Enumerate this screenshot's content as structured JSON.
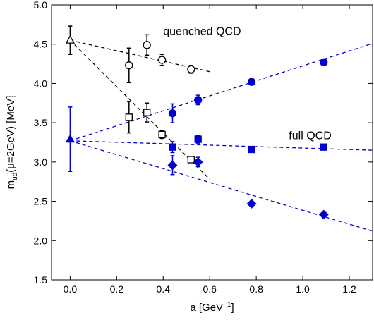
{
  "chart_data": {
    "type": "scatter",
    "xlabel": "a [GeV",
    "xlabel_sup": "−1",
    "xlabel_end": "]",
    "ylabel_main": "m",
    "ylabel_sub": "ud",
    "ylabel_rest": "(μ=2GeV) [MeV]",
    "xlim": [
      -0.08,
      1.3
    ],
    "ylim": [
      1.5,
      5.0
    ],
    "xticks": [
      0.0,
      0.2,
      0.4,
      0.6,
      0.8,
      1.0,
      1.2
    ],
    "yticks": [
      1.5,
      2.0,
      2.5,
      3.0,
      3.5,
      4.0,
      4.5,
      5.0
    ],
    "xtick_labels": [
      "0.0",
      "0.2",
      "0.4",
      "0.6",
      "0.8",
      "1.0",
      "1.2"
    ],
    "ytick_labels": [
      "1.5",
      "2.0",
      "2.5",
      "3.0",
      "3.5",
      "4.0",
      "4.5",
      "5.0"
    ],
    "grid": false,
    "annotations": [
      {
        "text": "quenched QCD",
        "x": 0.4,
        "y": 4.62
      },
      {
        "text": "full QCD",
        "x": 0.94,
        "y": 3.29
      }
    ],
    "series": [
      {
        "marker": "circle",
        "fill": "open",
        "color": "#000000",
        "points": [
          {
            "x": 0.253,
            "y": 4.23,
            "err": 0.22
          },
          {
            "x": 0.33,
            "y": 4.49,
            "err": 0.13
          },
          {
            "x": 0.395,
            "y": 4.3,
            "err": 0.07
          },
          {
            "x": 0.52,
            "y": 4.18,
            "err": 0.05
          }
        ]
      },
      {
        "marker": "square",
        "fill": "open",
        "color": "#000000",
        "points": [
          {
            "x": 0.253,
            "y": 3.57,
            "err": 0.2
          },
          {
            "x": 0.33,
            "y": 3.63,
            "err": 0.12
          },
          {
            "x": 0.395,
            "y": 3.35,
            "err": 0.05
          },
          {
            "x": 0.52,
            "y": 3.03,
            "err": 0.03
          }
        ]
      },
      {
        "marker": "triangle",
        "fill": "open",
        "color": "#000000",
        "points": [
          {
            "x": 0.0,
            "y": 4.55,
            "err": 0.18
          }
        ]
      },
      {
        "marker": "circle",
        "fill": "filled",
        "color": "#0000cc",
        "points": [
          {
            "x": 0.44,
            "y": 3.62,
            "err": 0.12
          },
          {
            "x": 0.55,
            "y": 3.79,
            "err": 0.06
          },
          {
            "x": 0.78,
            "y": 4.02,
            "err": 0.02
          },
          {
            "x": 1.09,
            "y": 4.27,
            "err": 0.02
          }
        ]
      },
      {
        "marker": "square",
        "fill": "filled",
        "color": "#0000cc",
        "points": [
          {
            "x": 0.44,
            "y": 3.19,
            "err": 0.07
          },
          {
            "x": 0.55,
            "y": 3.29,
            "err": 0.05
          },
          {
            "x": 0.78,
            "y": 3.16,
            "err": 0.03
          },
          {
            "x": 1.09,
            "y": 3.19,
            "err": 0.03
          }
        ]
      },
      {
        "marker": "diamond",
        "fill": "filled",
        "color": "#0000cc",
        "points": [
          {
            "x": 0.44,
            "y": 2.96,
            "err": 0.12
          },
          {
            "x": 0.55,
            "y": 3.0,
            "err": 0.06
          },
          {
            "x": 0.78,
            "y": 2.47,
            "err": 0.0
          },
          {
            "x": 1.09,
            "y": 2.33,
            "err": 0.0
          }
        ]
      },
      {
        "marker": "triangle",
        "fill": "filled",
        "color": "#0000cc",
        "points": [
          {
            "x": 0.0,
            "y": 3.29,
            "err": 0.41
          }
        ]
      }
    ],
    "fit_lines": [
      {
        "color": "#000000",
        "points": [
          [
            0.0,
            4.55
          ],
          [
            0.6,
            4.15
          ]
        ]
      },
      {
        "color": "#000000",
        "points": [
          [
            0.0,
            4.55
          ],
          [
            0.6,
            2.78
          ]
        ]
      },
      {
        "color": "#0000cc",
        "points": [
          [
            0.0,
            3.27
          ],
          [
            1.3,
            4.51
          ]
        ]
      },
      {
        "color": "#0000cc",
        "points": [
          [
            0.0,
            3.27
          ],
          [
            1.3,
            3.15
          ]
        ]
      },
      {
        "color": "#0000cc",
        "points": [
          [
            0.0,
            3.27
          ],
          [
            1.3,
            2.12
          ]
        ]
      }
    ]
  }
}
